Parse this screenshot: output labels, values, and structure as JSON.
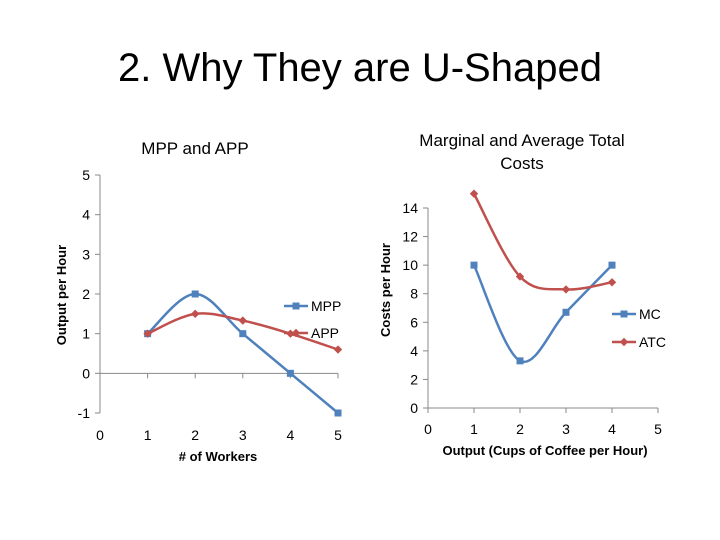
{
  "slide": {
    "title": "2. Why They are U-Shaped"
  },
  "chart_data": [
    {
      "type": "line",
      "title": "MPP and APP",
      "xlabel": "# of Workers",
      "ylabel": "Output per Hour",
      "x_ticks": [
        "0",
        "1",
        "2",
        "3",
        "4",
        "5"
      ],
      "y_ticks": [
        "-1",
        "0",
        "1",
        "2",
        "3",
        "4",
        "5"
      ],
      "xlim": [
        0,
        5
      ],
      "ylim": [
        -1,
        5
      ],
      "x": [
        1,
        2,
        3,
        4,
        5
      ],
      "series": [
        {
          "name": "MPP",
          "values": [
            1,
            2,
            1,
            0,
            -1
          ],
          "color": "#4F81BD",
          "marker": "square"
        },
        {
          "name": "APP",
          "values": [
            1,
            1.5,
            1.33,
            1,
            0.6
          ],
          "color": "#C0504D",
          "marker": "diamond"
        }
      ],
      "smooth": true,
      "legend": "right",
      "grid": false
    },
    {
      "type": "line",
      "title_lines": [
        "Marginal and Average Total",
        "Costs"
      ],
      "xlabel": "Output (Cups of Coffee per Hour)",
      "ylabel": "Costs per Hour",
      "x_ticks": [
        "0",
        "1",
        "2",
        "3",
        "4",
        "5"
      ],
      "y_ticks": [
        "0",
        "2",
        "4",
        "6",
        "8",
        "10",
        "12",
        "14"
      ],
      "xlim": [
        0,
        5
      ],
      "ylim": [
        0,
        14
      ],
      "x": [
        1,
        2,
        3,
        4
      ],
      "series": [
        {
          "name": "MC",
          "values": [
            10,
            3.3,
            6.7,
            10
          ],
          "color": "#4F81BD",
          "marker": "square"
        },
        {
          "name": "ATC",
          "values": [
            15,
            9.2,
            8.3,
            8.8
          ],
          "color": "#C0504D",
          "marker": "diamond"
        }
      ],
      "smooth": true,
      "legend": "right",
      "grid": false
    }
  ]
}
